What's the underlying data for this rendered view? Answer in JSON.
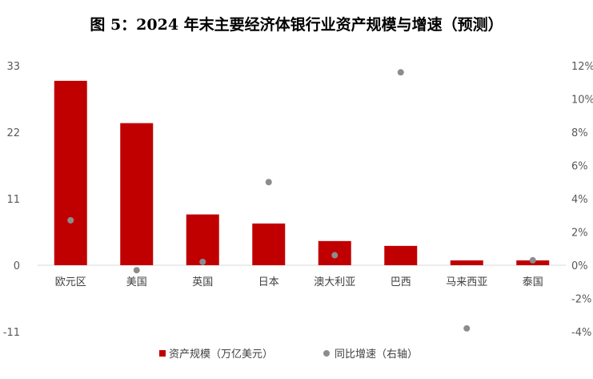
{
  "chart_data": {
    "type": "bar",
    "title": "图 5：2024 年末主要经济体银行业资产规模与增速（预测）",
    "categories": [
      "欧元区",
      "美国",
      "英国",
      "日本",
      "澳大利亚",
      "巴西",
      "马来西亚",
      "泰国"
    ],
    "series": [
      {
        "name": "资产规模（万亿美元）",
        "type": "bar",
        "axis": "left",
        "color": "#C00000",
        "values": [
          30.5,
          23.5,
          8.4,
          6.9,
          4.0,
          3.2,
          0.8,
          0.8
        ]
      },
      {
        "name": "同比增速（右轴）",
        "type": "scatter",
        "axis": "right",
        "color": "#8C8C8C",
        "values": [
          2.7,
          -0.3,
          0.2,
          5.0,
          0.6,
          11.6,
          -3.8,
          0.3
        ]
      }
    ],
    "left_axis": {
      "ylim": [
        -11,
        33
      ],
      "ticks": [
        -11,
        0,
        11,
        22,
        33
      ],
      "tick_labels": [
        "-11",
        "0",
        "11",
        "22",
        "33"
      ]
    },
    "right_axis": {
      "ylim": [
        -4,
        12
      ],
      "ticks": [
        -4,
        -2,
        0,
        2,
        4,
        6,
        8,
        10,
        12
      ],
      "tick_labels": [
        "-4%",
        "-2%",
        "0%",
        "2%",
        "4%",
        "6%",
        "8%",
        "10%",
        "12%"
      ]
    },
    "grid": false,
    "legend": "bottom"
  }
}
